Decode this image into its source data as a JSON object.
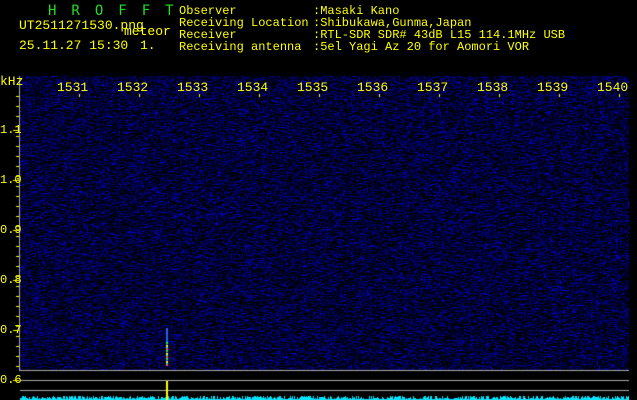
{
  "app_title": "HROFFT",
  "file_name": "UT2511271530.png",
  "mode": "meteor",
  "datetime": "25.11.27 15:30",
  "count": "1.",
  "info": [
    {
      "label": "Observer",
      "value": ":Masaki Kano"
    },
    {
      "label": "Receiving Location",
      "value": ":Shibukawa,Gunma,Japan"
    },
    {
      "label": "Receiver",
      "value": ":RTL-SDR SDR# 43dB L15 114.1MHz USB"
    },
    {
      "label": "Receiving antenna",
      "value": ":5el Yagi Az 20 for Aomori VOR"
    }
  ],
  "axis_unit": "kHz",
  "freq_labels": [
    "1531",
    "1532",
    "1533",
    "1534",
    "1535",
    "1536",
    "1537",
    "1538",
    "1539",
    "1540"
  ],
  "y_labels": [
    "1.1",
    "1.0",
    "0.9",
    "0.8",
    "0.7",
    "0.6"
  ],
  "colors": {
    "text": "#ffff00",
    "title": "#22dd22",
    "noise": "#1a1aff",
    "spectrum": "#00e5ff"
  }
}
